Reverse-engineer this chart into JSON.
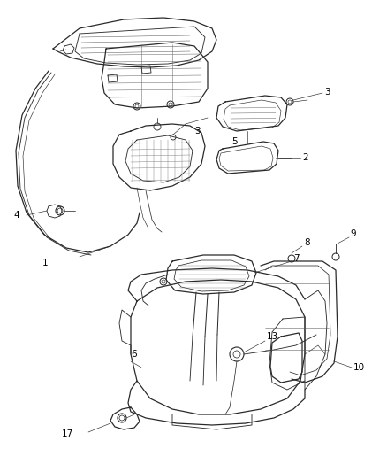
{
  "background_color": "#ffffff",
  "line_color": "#2a2a2a",
  "line_width": 0.9,
  "fig_width": 4.39,
  "fig_height": 5.33,
  "dpi": 100,
  "label_fontsize": 7.5,
  "label_color": "#000000"
}
